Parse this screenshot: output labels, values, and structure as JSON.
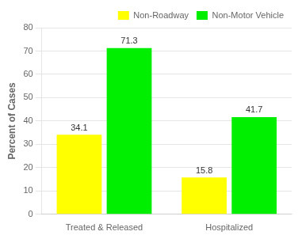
{
  "chart_data": {
    "type": "bar",
    "ylabel": "Percent of Cases",
    "categories": [
      "Treated & Released",
      "Hospitalized"
    ],
    "series": [
      {
        "name": "Non-Roadway",
        "color": "#FFFF00",
        "values": [
          34.1,
          15.8
        ]
      },
      {
        "name": "Non-Motor Vehicle",
        "color": "#00EE00",
        "values": [
          71.3,
          41.7
        ]
      }
    ],
    "ylim": [
      0,
      80
    ],
    "yticks": [
      0,
      10,
      20,
      30,
      40,
      50,
      60,
      70,
      80
    ],
    "grid": true,
    "legend": "upper right",
    "data_labels": true
  }
}
